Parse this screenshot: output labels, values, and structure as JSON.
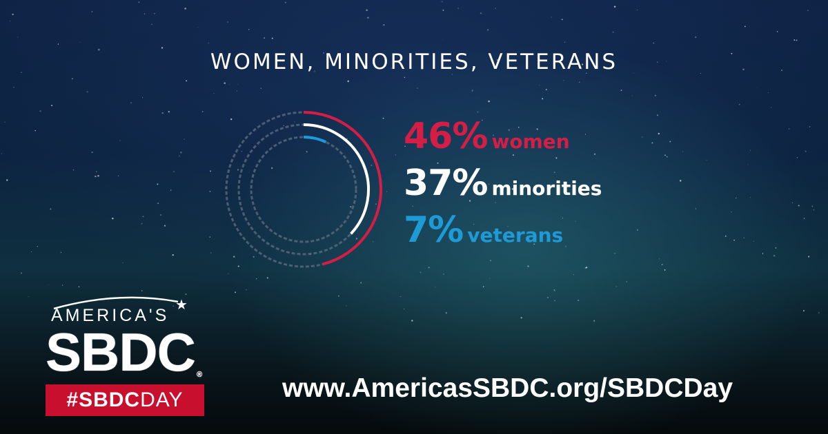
{
  "colors": {
    "women": "#d41e45",
    "minorities": "#ffffff",
    "veterans": "#1e9ad6",
    "track": "#5f6f80",
    "brand_red": "#c8102e"
  },
  "chart_data": {
    "type": "radial-bar",
    "title": "WOMEN, MINORITIES, VETERANS",
    "unit": "%",
    "series": [
      {
        "label": "women",
        "value": 46,
        "display": "46%"
      },
      {
        "label": "minorities",
        "value": 37,
        "display": "37%"
      },
      {
        "label": "veterans",
        "value": 7,
        "display": "7%"
      }
    ],
    "max": 100
  },
  "logo": {
    "top_text": "AMERICA'S",
    "main_text": "SBDC",
    "registered": "®",
    "hashtag_bold": "#SBDC",
    "hashtag_regular": "DAY"
  },
  "url": "www.AmericasSBDC.org/SBDCDay"
}
